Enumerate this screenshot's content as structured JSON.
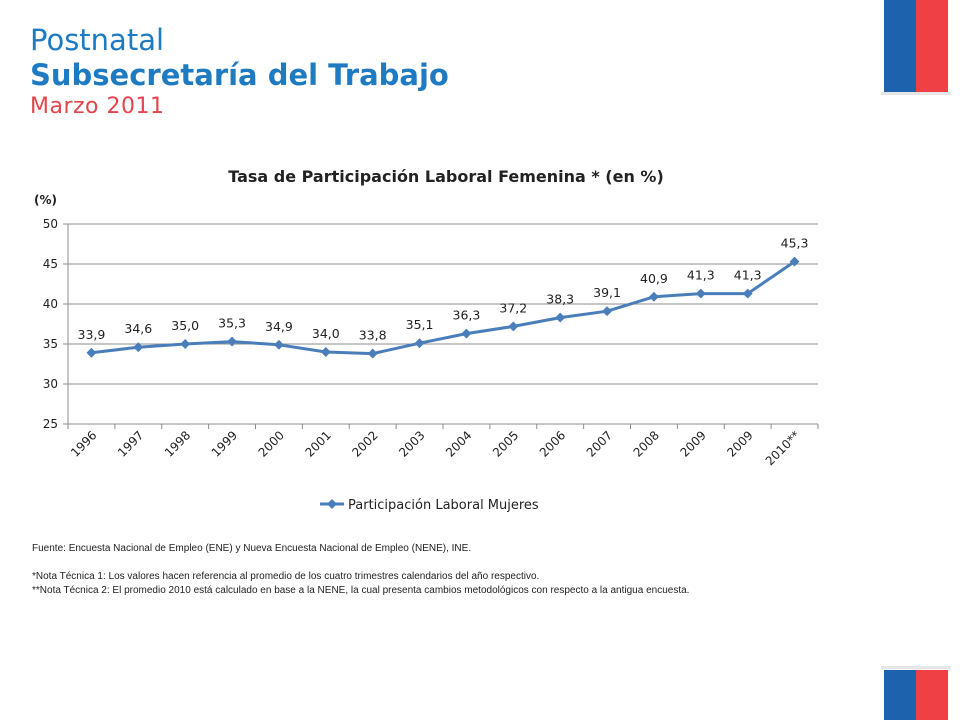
{
  "header": {
    "line1": "Postnatal",
    "line2": "Subsecretaría del Trabajo",
    "line3": "Marzo 2011"
  },
  "colors": {
    "title_blue": "#1f7bc1",
    "date_red": "#e2454a",
    "series_blue": "#4a7ebb",
    "flag_blue": "#1d62ad",
    "flag_red": "#ef4045"
  },
  "chart_data": {
    "type": "line",
    "title": "Tasa de Participación Laboral Femenina * (en %)",
    "unit_label": "(%)",
    "categories": [
      "1996",
      "1997",
      "1998",
      "1999",
      "2000",
      "2001",
      "2002",
      "2003",
      "2004",
      "2005",
      "2006",
      "2007",
      "2008",
      "2009",
      "2009",
      "2010**"
    ],
    "series": [
      {
        "name": "Participación Laboral Mujeres",
        "values": [
          33.9,
          34.6,
          35.0,
          35.3,
          34.9,
          34.0,
          33.8,
          35.1,
          36.3,
          37.2,
          38.3,
          39.1,
          40.9,
          41.3,
          41.3,
          45.3
        ],
        "labels": [
          "33,9",
          "34,6",
          "35,0",
          "35,3",
          "34,9",
          "34,0",
          "33,8",
          "35,1",
          "36,3",
          "37,2",
          "38,3",
          "39,1",
          "40,9",
          "41,3",
          "41,3",
          "45,3"
        ]
      }
    ],
    "yticks": [
      50,
      45,
      40,
      35,
      30,
      25
    ],
    "ylim": [
      25,
      50
    ],
    "grid": true,
    "legend_position": "bottom"
  },
  "notes": {
    "source": "Fuente: Encuesta Nacional de Empleo (ENE) y Nueva Encuesta Nacional de Empleo (NENE), INE.",
    "note1": "*Nota Técnica 1: Los valores hacen referencia al promedio de los cuatro trimestres calendarios del año respectivo.",
    "note2": "**Nota Técnica 2: El promedio 2010 está calculado en base a la NENE, la cual presenta cambios metodológicos con respecto a la antigua encuesta."
  }
}
